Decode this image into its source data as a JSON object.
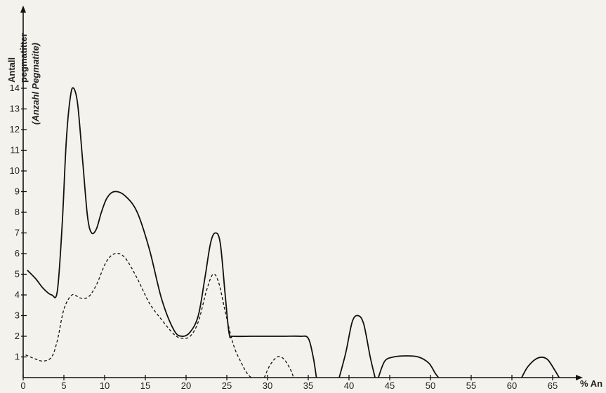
{
  "chart_data": {
    "type": "line",
    "title": "",
    "xlabel": "% An",
    "ylabel_lines": [
      "Antall",
      "pegmatitter",
      "(Anzahl Pegmatite)"
    ],
    "xlim": [
      0,
      67
    ],
    "ylim": [
      0,
      15
    ],
    "xticks": [
      0,
      5,
      10,
      15,
      20,
      25,
      30,
      35,
      40,
      45,
      50,
      55,
      60,
      65
    ],
    "yticks": [
      1,
      2,
      3,
      4,
      5,
      6,
      7,
      8,
      9,
      10,
      11,
      12,
      13,
      14
    ],
    "grid": false,
    "series": [
      {
        "style": "solid",
        "segments": [
          [
            [
              0.5,
              5.2
            ],
            [
              1.5,
              4.8
            ],
            [
              2.5,
              4.3
            ],
            [
              3.5,
              4.0
            ],
            [
              4.2,
              4.2
            ],
            [
              4.8,
              7.5
            ],
            [
              5.3,
              11.5
            ],
            [
              5.8,
              13.6
            ],
            [
              6.2,
              14.0
            ],
            [
              6.7,
              13.2
            ],
            [
              7.3,
              10.5
            ],
            [
              7.9,
              7.8
            ],
            [
              8.4,
              7.0
            ],
            [
              9.0,
              7.2
            ],
            [
              9.6,
              8.0
            ],
            [
              10.3,
              8.7
            ],
            [
              11.2,
              9.0
            ],
            [
              12.5,
              8.8
            ],
            [
              14.0,
              8.0
            ],
            [
              15.5,
              6.2
            ],
            [
              17.0,
              3.8
            ],
            [
              18.5,
              2.3
            ],
            [
              19.5,
              2.0
            ],
            [
              20.5,
              2.2
            ],
            [
              21.5,
              3.0
            ],
            [
              22.3,
              4.8
            ],
            [
              23.0,
              6.5
            ],
            [
              23.6,
              7.0
            ],
            [
              24.2,
              6.5
            ],
            [
              24.8,
              4.0
            ],
            [
              25.3,
              2.1
            ],
            [
              25.8,
              2.0
            ],
            [
              28,
              2.0
            ],
            [
              30,
              2.0
            ],
            [
              32,
              2.0
            ],
            [
              34,
              2.0
            ],
            [
              35,
              1.9
            ],
            [
              35.6,
              1.0
            ],
            [
              36,
              0.0
            ]
          ],
          [
            [
              38.8,
              0.0
            ],
            [
              39.6,
              1.2
            ],
            [
              40.4,
              2.7
            ],
            [
              41.1,
              3.0
            ],
            [
              41.8,
              2.6
            ],
            [
              42.6,
              1.0
            ],
            [
              43.2,
              0.0
            ]
          ],
          [
            [
              43.6,
              0.0
            ],
            [
              44.4,
              0.8
            ],
            [
              45.5,
              1.0
            ],
            [
              47.0,
              1.05
            ],
            [
              48.5,
              1.0
            ],
            [
              49.8,
              0.7
            ],
            [
              50.6,
              0.2
            ],
            [
              51.0,
              0.0
            ]
          ],
          [
            [
              61.2,
              0.0
            ],
            [
              62.0,
              0.55
            ],
            [
              63.2,
              0.95
            ],
            [
              64.3,
              0.9
            ],
            [
              65.2,
              0.4
            ],
            [
              65.8,
              0.0
            ]
          ]
        ]
      },
      {
        "style": "dashed",
        "segments": [
          [
            [
              0.3,
              1.1
            ],
            [
              1.5,
              0.9
            ],
            [
              2.5,
              0.8
            ],
            [
              3.5,
              1.0
            ],
            [
              4.2,
              1.8
            ],
            [
              5.0,
              3.3
            ],
            [
              6.0,
              4.0
            ],
            [
              7.0,
              3.85
            ],
            [
              8.0,
              3.9
            ],
            [
              9.0,
              4.5
            ],
            [
              10.2,
              5.6
            ],
            [
              11.3,
              6.0
            ],
            [
              12.5,
              5.8
            ],
            [
              14.0,
              4.8
            ],
            [
              15.5,
              3.6
            ],
            [
              17.0,
              2.8
            ],
            [
              18.5,
              2.1
            ],
            [
              19.5,
              1.9
            ],
            [
              20.5,
              2.0
            ],
            [
              21.5,
              2.7
            ],
            [
              22.5,
              4.2
            ],
            [
              23.3,
              5.0
            ],
            [
              24.0,
              4.6
            ],
            [
              24.8,
              3.2
            ],
            [
              25.8,
              1.6
            ],
            [
              26.8,
              0.7
            ],
            [
              27.5,
              0.2
            ],
            [
              28.0,
              0.0
            ]
          ],
          [
            [
              29.6,
              0.0
            ],
            [
              30.3,
              0.6
            ],
            [
              31.2,
              1.0
            ],
            [
              32.0,
              0.9
            ],
            [
              32.8,
              0.4
            ],
            [
              33.2,
              0.0
            ]
          ]
        ]
      }
    ]
  }
}
